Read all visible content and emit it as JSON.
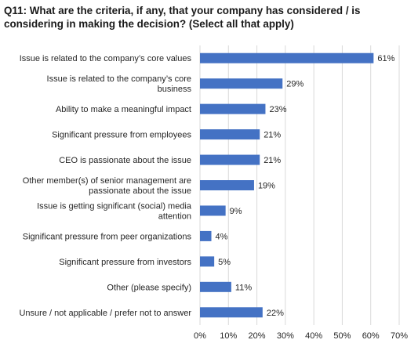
{
  "chart_data": {
    "type": "bar",
    "orientation": "horizontal",
    "title": "Q11: What are the criteria, if any, that your company has considered / is considering in making the decision? (Select all that apply)",
    "categories": [
      [
        "Issue is related to the company’s core values"
      ],
      [
        "Issue is related to the company’s core",
        "business"
      ],
      [
        "Ability to make a meaningful impact"
      ],
      [
        "Significant pressure from employees"
      ],
      [
        "CEO is passionate about the issue"
      ],
      [
        "Other member(s) of senior management are",
        "passionate about the issue"
      ],
      [
        "Issue is getting significant (social) media",
        "attention"
      ],
      [
        "Significant pressure from peer organizations"
      ],
      [
        "Significant pressure from investors"
      ],
      [
        "Other (please specify)"
      ],
      [
        "Unsure / not applicable / prefer not to answer"
      ]
    ],
    "values": [
      61,
      29,
      23,
      21,
      21,
      19,
      9,
      4,
      5,
      11,
      22
    ],
    "data_labels": [
      "61%",
      "29%",
      "23%",
      "21%",
      "21%",
      "19%",
      "9%",
      "4%",
      "5%",
      "11%",
      "22%"
    ],
    "xlim": [
      0,
      70
    ],
    "xticks": [
      0,
      10,
      20,
      30,
      40,
      50,
      60,
      70
    ],
    "xtick_labels": [
      "0%",
      "10%",
      "20%",
      "30%",
      "40%",
      "50%",
      "60%",
      "70%"
    ],
    "grid": true,
    "bar_color": "#4472c4",
    "grid_color": "#d9d9d9"
  }
}
